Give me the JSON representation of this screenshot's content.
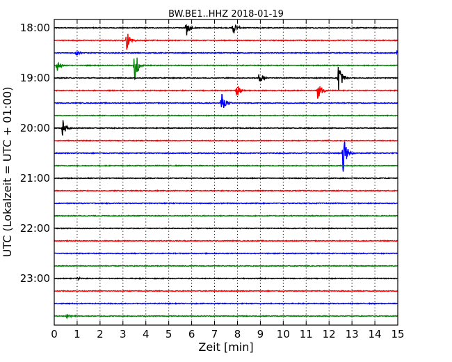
{
  "chart_data": {
    "type": "line",
    "title": "BW.BE1..HHZ 2018-01-19",
    "xlabel": "Zeit  [min]",
    "ylabel": "UTC (Lokalzeit = UTC + 01:00)",
    "xlim": [
      0,
      15
    ],
    "x_ticks": [
      "0",
      "1",
      "2",
      "3",
      "4",
      "5",
      "6",
      "7",
      "8",
      "9",
      "10",
      "11",
      "12",
      "13",
      "14",
      "15"
    ],
    "y_tick_labels": [
      "18:00",
      "19:00",
      "20:00",
      "21:00",
      "22:00",
      "23:00"
    ],
    "grid": true,
    "trace_interval_minutes": 15,
    "trace_colors": [
      "#000000",
      "#ff0000",
      "#0000ff",
      "#007f00"
    ],
    "traces": [
      {
        "start": "18:00",
        "events": [
          {
            "x": 5.75,
            "amp": 1.0
          },
          {
            "x": 7.8,
            "amp": 0.9
          }
        ]
      },
      {
        "start": "18:15",
        "events": [
          {
            "x": 3.15,
            "amp": 1.2
          }
        ]
      },
      {
        "start": "18:30",
        "events": [
          {
            "x": 0.95,
            "amp": 0.35
          },
          {
            "x": 14.95,
            "amp": 0.3
          }
        ]
      },
      {
        "start": "18:45",
        "events": [
          {
            "x": 0.1,
            "amp": 0.9
          },
          {
            "x": 3.5,
            "amp": 2.4
          }
        ]
      },
      {
        "start": "19:00",
        "events": [
          {
            "x": 8.95,
            "amp": 1.1
          },
          {
            "x": 12.4,
            "amp": 2.2
          }
        ]
      },
      {
        "start": "19:15",
        "events": [
          {
            "x": 7.95,
            "amp": 1.0
          },
          {
            "x": 11.5,
            "amp": 1.4
          }
        ]
      },
      {
        "start": "19:30",
        "events": [
          {
            "x": 7.3,
            "amp": 1.3
          }
        ]
      },
      {
        "start": "19:45",
        "events": []
      },
      {
        "start": "20:00",
        "events": [
          {
            "x": 0.35,
            "amp": 1.1
          }
        ]
      },
      {
        "start": "20:15",
        "events": []
      },
      {
        "start": "20:30",
        "events": [
          {
            "x": 12.6,
            "amp": 2.4
          }
        ]
      },
      {
        "start": "20:45",
        "events": []
      },
      {
        "start": "21:00",
        "events": []
      },
      {
        "start": "21:15",
        "events": []
      },
      {
        "start": "21:30",
        "events": []
      },
      {
        "start": "21:45",
        "events": []
      },
      {
        "start": "22:00",
        "events": []
      },
      {
        "start": "22:15",
        "events": []
      },
      {
        "start": "22:30",
        "events": []
      },
      {
        "start": "22:45",
        "events": []
      },
      {
        "start": "23:00",
        "events": [
          {
            "x": 1.0,
            "amp": 0.15
          }
        ]
      },
      {
        "start": "23:15",
        "events": []
      },
      {
        "start": "23:30",
        "events": []
      },
      {
        "start": "23:45",
        "events": [
          {
            "x": 0.55,
            "amp": 0.35
          }
        ]
      }
    ]
  }
}
